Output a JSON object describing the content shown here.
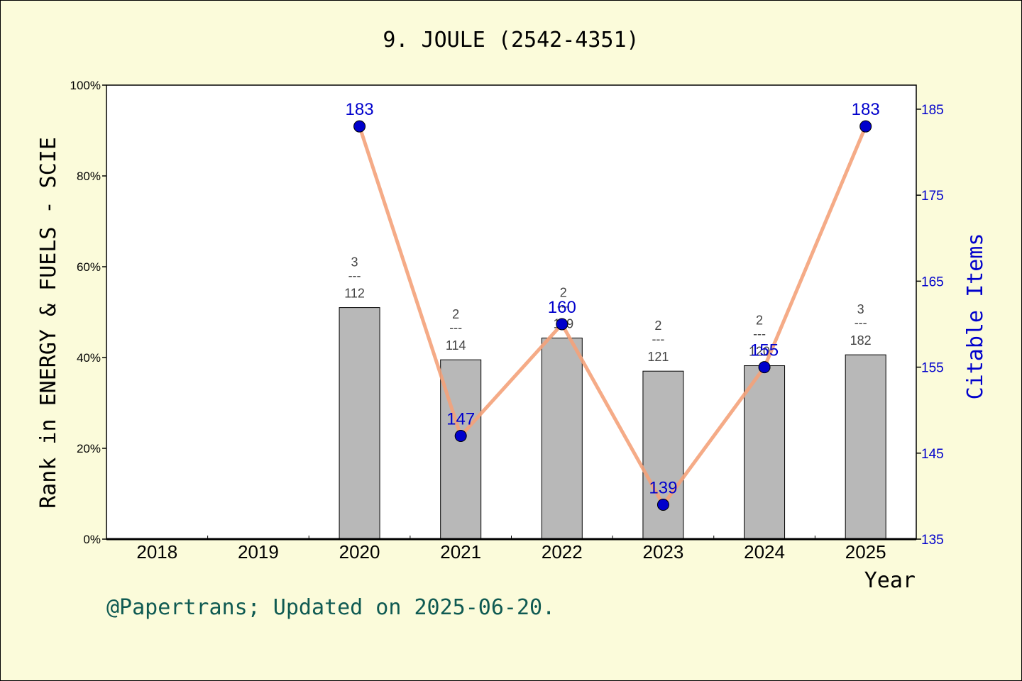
{
  "chart_data": {
    "type": "bar",
    "title": "9. JOULE (2542-4351)",
    "xlabel": "Year",
    "ylabel": "Rank in ENERGY & FUELS - SCIE",
    "y2label": "Citable Items",
    "categories": [
      "2018",
      "2019",
      "2020",
      "2021",
      "2022",
      "2023",
      "2024",
      "2025"
    ],
    "ylim": [
      0,
      100
    ],
    "y2lim": [
      135,
      187.8
    ],
    "y_ticks": [
      "0%",
      "20%",
      "40%",
      "60%",
      "80%",
      "100%"
    ],
    "y2_ticks": [
      "135",
      "145",
      "155",
      "165",
      "175",
      "185"
    ],
    "grid": false,
    "series": [
      {
        "name": "Rank",
        "axis": "left",
        "values": [
          null,
          null,
          51.0,
          39.5,
          44.3,
          37.0,
          38.2,
          40.6
        ],
        "labels": [
          null,
          null,
          [
            "3",
            "---",
            "112"
          ],
          [
            "2",
            "---",
            "114"
          ],
          [
            "2",
            "---",
            "119"
          ],
          [
            "2",
            "---",
            "121"
          ],
          [
            "2",
            "---",
            "120"
          ],
          [
            "3",
            "---",
            "182"
          ]
        ],
        "color": "#b8b8b8"
      },
      {
        "name": "Citable Items",
        "axis": "right",
        "type": "line",
        "values": [
          null,
          null,
          183,
          147,
          160,
          139,
          155,
          183
        ],
        "labels": [
          null,
          null,
          "183",
          "147",
          "160",
          "139",
          "155",
          "183"
        ],
        "color": "#f4a27a",
        "marker_color": "#0000cc"
      }
    ]
  },
  "footer": "@Papertrans; Updated on 2025-06-20.",
  "colors": {
    "background": "#fbfbda",
    "accent": "#0000cc",
    "footer": "#0f5a52"
  }
}
